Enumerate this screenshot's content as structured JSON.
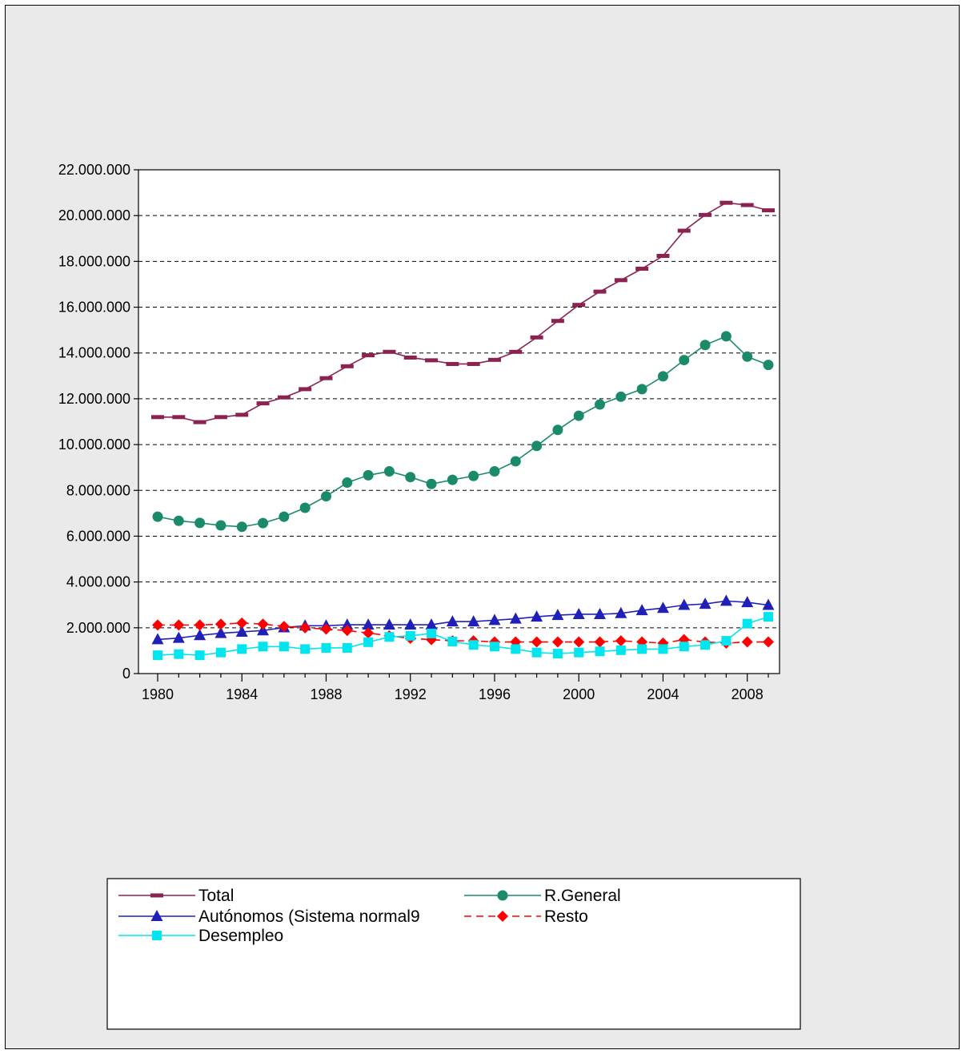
{
  "chart_data": {
    "type": "line",
    "x": [
      1980,
      1981,
      1982,
      1983,
      1984,
      1985,
      1986,
      1987,
      1988,
      1989,
      1990,
      1991,
      1992,
      1993,
      1994,
      1995,
      1996,
      1997,
      1998,
      1999,
      2000,
      2001,
      2002,
      2003,
      2004,
      2005,
      2006,
      2007,
      2008,
      2009
    ],
    "xlim": [
      1980,
      2009
    ],
    "x_ticks": [
      "1980",
      "1984",
      "1988",
      "1992",
      "1996",
      "2000",
      "2004",
      "2008"
    ],
    "ylim": [
      0,
      22000000
    ],
    "y_ticks": [
      "0",
      "2.000.000",
      "4.000.000",
      "6.000.000",
      "8.000.000",
      "10.000.000",
      "12.000.000",
      "14.000.000",
      "16.000.000",
      "18.000.000",
      "20.000.000",
      "22.000.000"
    ],
    "grid": "horizontal dashed",
    "legend_position": "bottom",
    "series": [
      {
        "name": "Total",
        "color": "#8b2252",
        "marker": "dash",
        "line": "solid",
        "values": [
          11200000,
          11200000,
          10980000,
          11200000,
          11300000,
          11800000,
          12060000,
          12420000,
          12900000,
          13420000,
          13900000,
          14050000,
          13800000,
          13680000,
          13520000,
          13520000,
          13700000,
          14050000,
          14680000,
          15400000,
          16100000,
          16680000,
          17180000,
          17680000,
          18240000,
          19340000,
          20030000,
          20560000,
          20460000,
          20230000
        ]
      },
      {
        "name": "R.General",
        "color": "#1a8a6a",
        "marker": "circle",
        "line": "solid",
        "values": [
          6850000,
          6670000,
          6580000,
          6470000,
          6410000,
          6570000,
          6850000,
          7240000,
          7740000,
          8340000,
          8660000,
          8830000,
          8580000,
          8280000,
          8460000,
          8630000,
          8830000,
          9270000,
          9940000,
          10640000,
          11260000,
          11750000,
          12090000,
          12420000,
          12980000,
          13690000,
          14350000,
          14730000,
          13840000,
          13480000
        ]
      },
      {
        "name": "Autónomos (Sistema normal9",
        "color": "#2020b8",
        "marker": "triangle",
        "line": "solid",
        "values": [
          1490000,
          1550000,
          1670000,
          1760000,
          1820000,
          1880000,
          2010000,
          2090000,
          2090000,
          2130000,
          2130000,
          2130000,
          2130000,
          2130000,
          2270000,
          2270000,
          2330000,
          2390000,
          2480000,
          2550000,
          2590000,
          2590000,
          2630000,
          2760000,
          2860000,
          2990000,
          3040000,
          3170000,
          3110000,
          2990000
        ]
      },
      {
        "name": "Resto",
        "color": "#ff0000",
        "marker": "diamond",
        "line": "dashed",
        "values": [
          2120000,
          2120000,
          2120000,
          2160000,
          2210000,
          2160000,
          2060000,
          2000000,
          1940000,
          1880000,
          1770000,
          1650000,
          1540000,
          1480000,
          1430000,
          1430000,
          1380000,
          1380000,
          1380000,
          1380000,
          1380000,
          1380000,
          1430000,
          1380000,
          1330000,
          1480000,
          1380000,
          1330000,
          1380000,
          1380000
        ]
      },
      {
        "name": "Desempleo",
        "color": "#00e5ee",
        "marker": "square",
        "line": "solid",
        "values": [
          800000,
          850000,
          800000,
          920000,
          1070000,
          1180000,
          1180000,
          1070000,
          1120000,
          1120000,
          1370000,
          1600000,
          1650000,
          1750000,
          1400000,
          1250000,
          1180000,
          1070000,
          920000,
          870000,
          920000,
          970000,
          1020000,
          1070000,
          1070000,
          1180000,
          1250000,
          1430000,
          2180000,
          2480000
        ]
      }
    ]
  }
}
